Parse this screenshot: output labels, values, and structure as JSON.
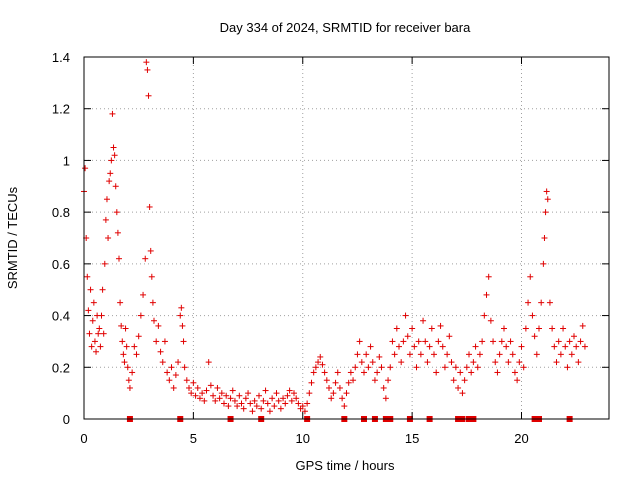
{
  "chart_data": {
    "type": "scatter",
    "title": "Day 334 of 2024, SRMTID for receiver bara",
    "xlabel": "GPS time / hours",
    "ylabel": "SRMTID / TECUs",
    "xlim": [
      0,
      24
    ],
    "ylim": [
      0,
      1.4
    ],
    "xticks": [
      0,
      5,
      10,
      15,
      20
    ],
    "xtick_labels": [
      "0",
      "5",
      "10",
      "15",
      "20"
    ],
    "yticks": [
      0,
      0.2,
      0.4,
      0.6,
      0.8,
      1.0,
      1.2,
      1.4
    ],
    "ytick_labels": [
      "0",
      "0.2",
      "0.4",
      "0.6",
      "0.8",
      "1",
      "1.2",
      "1.4"
    ],
    "grid": true,
    "marker": "plus",
    "color": "#e00000",
    "series": [
      {
        "name": "SRMTID",
        "points": [
          [
            0.0,
            0.88
          ],
          [
            0.05,
            0.97
          ],
          [
            0.1,
            0.7
          ],
          [
            0.15,
            0.55
          ],
          [
            0.2,
            0.42
          ],
          [
            0.25,
            0.33
          ],
          [
            0.3,
            0.5
          ],
          [
            0.35,
            0.28
          ],
          [
            0.4,
            0.38
          ],
          [
            0.45,
            0.45
          ],
          [
            0.5,
            0.3
          ],
          [
            0.55,
            0.26
          ],
          [
            0.6,
            0.4
          ],
          [
            0.65,
            0.33
          ],
          [
            0.7,
            0.35
          ],
          [
            0.75,
            0.28
          ],
          [
            0.8,
            0.4
          ],
          [
            0.85,
            0.5
          ],
          [
            0.9,
            0.33
          ],
          [
            0.95,
            0.6
          ],
          [
            1.0,
            0.77
          ],
          [
            1.05,
            0.85
          ],
          [
            1.1,
            0.7
          ],
          [
            1.15,
            0.92
          ],
          [
            1.2,
            0.95
          ],
          [
            1.25,
            1.0
          ],
          [
            1.3,
            1.18
          ],
          [
            1.35,
            1.05
          ],
          [
            1.4,
            1.02
          ],
          [
            1.45,
            0.9
          ],
          [
            1.5,
            0.8
          ],
          [
            1.55,
            0.72
          ],
          [
            1.6,
            0.62
          ],
          [
            1.65,
            0.45
          ],
          [
            1.7,
            0.36
          ],
          [
            1.75,
            0.3
          ],
          [
            1.8,
            0.25
          ],
          [
            1.85,
            0.22
          ],
          [
            1.9,
            0.35
          ],
          [
            1.95,
            0.28
          ],
          [
            2.0,
            0.2
          ],
          [
            2.05,
            0.15
          ],
          [
            2.1,
            0.12
          ],
          [
            2.2,
            0.18
          ],
          [
            2.3,
            0.28
          ],
          [
            2.4,
            0.25
          ],
          [
            2.5,
            0.32
          ],
          [
            2.6,
            0.4
          ],
          [
            2.7,
            0.48
          ],
          [
            2.8,
            0.62
          ],
          [
            2.85,
            1.38
          ],
          [
            2.9,
            1.35
          ],
          [
            2.95,
            1.25
          ],
          [
            3.0,
            0.82
          ],
          [
            3.05,
            0.65
          ],
          [
            3.1,
            0.55
          ],
          [
            3.15,
            0.45
          ],
          [
            3.2,
            0.38
          ],
          [
            3.3,
            0.3
          ],
          [
            3.4,
            0.36
          ],
          [
            3.5,
            0.26
          ],
          [
            3.6,
            0.22
          ],
          [
            3.7,
            0.3
          ],
          [
            3.8,
            0.18
          ],
          [
            3.9,
            0.15
          ],
          [
            4.0,
            0.2
          ],
          [
            4.1,
            0.12
          ],
          [
            4.2,
            0.17
          ],
          [
            4.3,
            0.22
          ],
          [
            4.4,
            0.4
          ],
          [
            4.45,
            0.43
          ],
          [
            4.5,
            0.36
          ],
          [
            4.55,
            0.3
          ],
          [
            4.6,
            0.2
          ],
          [
            4.7,
            0.15
          ],
          [
            4.8,
            0.12
          ],
          [
            4.9,
            0.1
          ],
          [
            5.0,
            0.14
          ],
          [
            5.1,
            0.09
          ],
          [
            5.2,
            0.12
          ],
          [
            5.3,
            0.08
          ],
          [
            5.4,
            0.1
          ],
          [
            5.5,
            0.07
          ],
          [
            5.6,
            0.11
          ],
          [
            5.7,
            0.22
          ],
          [
            5.8,
            0.13
          ],
          [
            5.9,
            0.09
          ],
          [
            6.0,
            0.07
          ],
          [
            6.1,
            0.12
          ],
          [
            6.2,
            0.08
          ],
          [
            6.3,
            0.1
          ],
          [
            6.4,
            0.06
          ],
          [
            6.5,
            0.09
          ],
          [
            6.6,
            0.05
          ],
          [
            6.7,
            0.08
          ],
          [
            6.8,
            0.11
          ],
          [
            6.9,
            0.07
          ],
          [
            7.0,
            0.05
          ],
          [
            7.1,
            0.09
          ],
          [
            7.2,
            0.06
          ],
          [
            7.3,
            0.04
          ],
          [
            7.4,
            0.08
          ],
          [
            7.5,
            0.1
          ],
          [
            7.6,
            0.06
          ],
          [
            7.7,
            0.03
          ],
          [
            7.8,
            0.07
          ],
          [
            7.9,
            0.05
          ],
          [
            8.0,
            0.09
          ],
          [
            8.1,
            0.04
          ],
          [
            8.2,
            0.07
          ],
          [
            8.3,
            0.11
          ],
          [
            8.4,
            0.06
          ],
          [
            8.5,
            0.03
          ],
          [
            8.6,
            0.08
          ],
          [
            8.7,
            0.05
          ],
          [
            8.8,
            0.1
          ],
          [
            8.9,
            0.07
          ],
          [
            9.0,
            0.04
          ],
          [
            9.1,
            0.08
          ],
          [
            9.2,
            0.06
          ],
          [
            9.3,
            0.09
          ],
          [
            9.4,
            0.11
          ],
          [
            9.5,
            0.07
          ],
          [
            9.6,
            0.1
          ],
          [
            9.7,
            0.08
          ],
          [
            9.8,
            0.06
          ],
          [
            9.9,
            0.04
          ],
          [
            10.0,
            0.05
          ],
          [
            10.1,
            0.03
          ],
          [
            10.2,
            0.06
          ],
          [
            10.3,
            0.1
          ],
          [
            10.4,
            0.14
          ],
          [
            10.5,
            0.18
          ],
          [
            10.6,
            0.2
          ],
          [
            10.7,
            0.22
          ],
          [
            10.8,
            0.24
          ],
          [
            10.9,
            0.21
          ],
          [
            11.0,
            0.18
          ],
          [
            11.1,
            0.15
          ],
          [
            11.2,
            0.12
          ],
          [
            11.3,
            0.08
          ],
          [
            11.4,
            0.1
          ],
          [
            11.5,
            0.14
          ],
          [
            11.6,
            0.18
          ],
          [
            11.7,
            0.12
          ],
          [
            11.8,
            0.08
          ],
          [
            11.9,
            0.05
          ],
          [
            12.0,
            0.1
          ],
          [
            12.1,
            0.14
          ],
          [
            12.2,
            0.18
          ],
          [
            12.3,
            0.15
          ],
          [
            12.4,
            0.2
          ],
          [
            12.5,
            0.25
          ],
          [
            12.6,
            0.3
          ],
          [
            12.7,
            0.22
          ],
          [
            12.8,
            0.18
          ],
          [
            12.9,
            0.25
          ],
          [
            13.0,
            0.2
          ],
          [
            13.1,
            0.28
          ],
          [
            13.2,
            0.22
          ],
          [
            13.3,
            0.15
          ],
          [
            13.4,
            0.18
          ],
          [
            13.5,
            0.24
          ],
          [
            13.6,
            0.2
          ],
          [
            13.7,
            0.12
          ],
          [
            13.8,
            0.08
          ],
          [
            13.9,
            0.15
          ],
          [
            14.0,
            0.2
          ],
          [
            14.1,
            0.3
          ],
          [
            14.2,
            0.25
          ],
          [
            14.3,
            0.35
          ],
          [
            14.4,
            0.28
          ],
          [
            14.5,
            0.22
          ],
          [
            14.6,
            0.3
          ],
          [
            14.7,
            0.4
          ],
          [
            14.8,
            0.32
          ],
          [
            14.9,
            0.25
          ],
          [
            15.0,
            0.35
          ],
          [
            15.1,
            0.28
          ],
          [
            15.2,
            0.2
          ],
          [
            15.3,
            0.3
          ],
          [
            15.4,
            0.25
          ],
          [
            15.5,
            0.38
          ],
          [
            15.6,
            0.3
          ],
          [
            15.7,
            0.22
          ],
          [
            15.8,
            0.28
          ],
          [
            15.9,
            0.35
          ],
          [
            16.0,
            0.25
          ],
          [
            16.1,
            0.18
          ],
          [
            16.2,
            0.3
          ],
          [
            16.3,
            0.36
          ],
          [
            16.4,
            0.28
          ],
          [
            16.5,
            0.2
          ],
          [
            16.6,
            0.25
          ],
          [
            16.7,
            0.32
          ],
          [
            16.8,
            0.22
          ],
          [
            16.9,
            0.15
          ],
          [
            17.0,
            0.2
          ],
          [
            17.1,
            0.12
          ],
          [
            17.2,
            0.18
          ],
          [
            17.3,
            0.1
          ],
          [
            17.4,
            0.15
          ],
          [
            17.5,
            0.2
          ],
          [
            17.6,
            0.25
          ],
          [
            17.7,
            0.18
          ],
          [
            17.8,
            0.22
          ],
          [
            17.9,
            0.28
          ],
          [
            18.0,
            0.2
          ],
          [
            18.1,
            0.25
          ],
          [
            18.2,
            0.3
          ],
          [
            18.3,
            0.4
          ],
          [
            18.4,
            0.48
          ],
          [
            18.5,
            0.55
          ],
          [
            18.6,
            0.38
          ],
          [
            18.7,
            0.3
          ],
          [
            18.8,
            0.22
          ],
          [
            18.9,
            0.18
          ],
          [
            19.0,
            0.25
          ],
          [
            19.1,
            0.3
          ],
          [
            19.2,
            0.35
          ],
          [
            19.3,
            0.28
          ],
          [
            19.4,
            0.22
          ],
          [
            19.5,
            0.3
          ],
          [
            19.6,
            0.25
          ],
          [
            19.7,
            0.18
          ],
          [
            19.8,
            0.15
          ],
          [
            19.9,
            0.22
          ],
          [
            20.0,
            0.28
          ],
          [
            20.1,
            0.2
          ],
          [
            20.2,
            0.35
          ],
          [
            20.3,
            0.45
          ],
          [
            20.4,
            0.55
          ],
          [
            20.5,
            0.4
          ],
          [
            20.6,
            0.32
          ],
          [
            20.7,
            0.25
          ],
          [
            20.8,
            0.35
          ],
          [
            20.9,
            0.45
          ],
          [
            21.0,
            0.6
          ],
          [
            21.05,
            0.7
          ],
          [
            21.1,
            0.8
          ],
          [
            21.15,
            0.88
          ],
          [
            21.2,
            0.85
          ],
          [
            21.3,
            0.45
          ],
          [
            21.4,
            0.35
          ],
          [
            21.5,
            0.28
          ],
          [
            21.6,
            0.22
          ],
          [
            21.7,
            0.3
          ],
          [
            21.8,
            0.25
          ],
          [
            21.9,
            0.35
          ],
          [
            22.0,
            0.28
          ],
          [
            22.1,
            0.2
          ],
          [
            22.2,
            0.3
          ],
          [
            22.3,
            0.25
          ],
          [
            22.4,
            0.32
          ],
          [
            22.5,
            0.28
          ],
          [
            22.6,
            0.22
          ],
          [
            22.7,
            0.3
          ],
          [
            22.8,
            0.36
          ],
          [
            22.9,
            0.28
          ]
        ]
      }
    ],
    "gap_markers_x": [
      2.1,
      4.4,
      6.7,
      8.1,
      10.2,
      11.9,
      12.8,
      13.3,
      13.8,
      14.0,
      14.9,
      15.8,
      17.1,
      17.3,
      17.6,
      17.8,
      20.6,
      20.8,
      22.2
    ]
  }
}
